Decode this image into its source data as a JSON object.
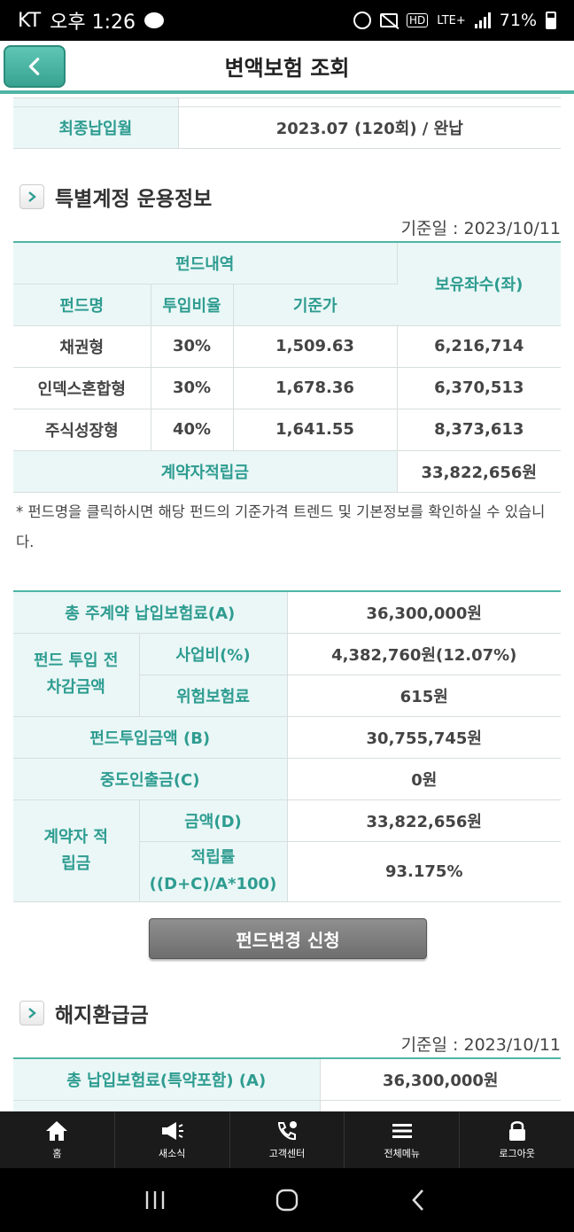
{
  "status_bar": {
    "carrier": "KT",
    "time": "오후 1:26",
    "hd": "HD",
    "lte": "LTE+",
    "battery": "71%"
  },
  "header": {
    "title": "변액보험 조회"
  },
  "top_row": {
    "label": "최종납입월",
    "value": "2023.07 (120회) / 완납"
  },
  "fund_section": {
    "title": "특별계정 운용정보",
    "base_date": "기준일 : 2023/10/11",
    "group_header": "펀드내역",
    "col_fund_name": "펀드명",
    "col_ratio": "투입비율",
    "col_price": "기준가",
    "col_units": "보유좌수(좌)",
    "rows": [
      {
        "name": "채권형",
        "ratio": "30%",
        "price": "1,509.63",
        "units": "6,216,714"
      },
      {
        "name": "인덱스혼합형",
        "ratio": "30%",
        "price": "1,678.36",
        "units": "6,370,513"
      },
      {
        "name": "주식성장형",
        "ratio": "40%",
        "price": "1,641.55",
        "units": "8,373,613"
      }
    ],
    "total_label": "계약자적립금",
    "total_value": "33,822,656원",
    "note": "* 펀드명을 클릭하시면 해당 펀드의 기준가격 트렌드 및 기본정보를 확인하실 수 있습니다."
  },
  "summary": {
    "premium_label": "총 주계약 납입보험료(A)",
    "premium_value": "36,300,000원",
    "deduct_group": "펀드 투입 전 차감금액",
    "biz_label": "사업비(%)",
    "biz_value": "4,382,760원(12.07%)",
    "risk_label": "위험보험료",
    "risk_value": "615원",
    "invest_label": "펀드투입금액 (B)",
    "invest_value": "30,755,745원",
    "withdraw_label": "중도인출금(C)",
    "withdraw_value": "0원",
    "reserve_group": "계약자 적립금",
    "amount_label": "금액(D)",
    "amount_value": "33,822,656원",
    "rate_label_1": "적립률",
    "rate_label_2": "((D+C)/A*100)",
    "rate_value": "93.175%"
  },
  "fund_change_button": "펀드변경 신청",
  "refund_section": {
    "title": "해지환급금",
    "base_date": "기준일 : 2023/10/11",
    "premium_label": "총 납입보험료(특약포함) (A)",
    "premium_value": "36,300,000원"
  },
  "bottom_nav": [
    {
      "label": "홈",
      "icon": "home-icon"
    },
    {
      "label": "새소식",
      "icon": "megaphone-icon"
    },
    {
      "label": "고객센터",
      "icon": "phone-icon"
    },
    {
      "label": "전체메뉴",
      "icon": "menu-icon"
    },
    {
      "label": "로그아웃",
      "icon": "lock-icon"
    }
  ],
  "colors": {
    "accent": "#4fb5a5",
    "label_bg": "#eaf7f6",
    "label_text": "#2e9c91",
    "button_gray": "#7a7a7a"
  }
}
